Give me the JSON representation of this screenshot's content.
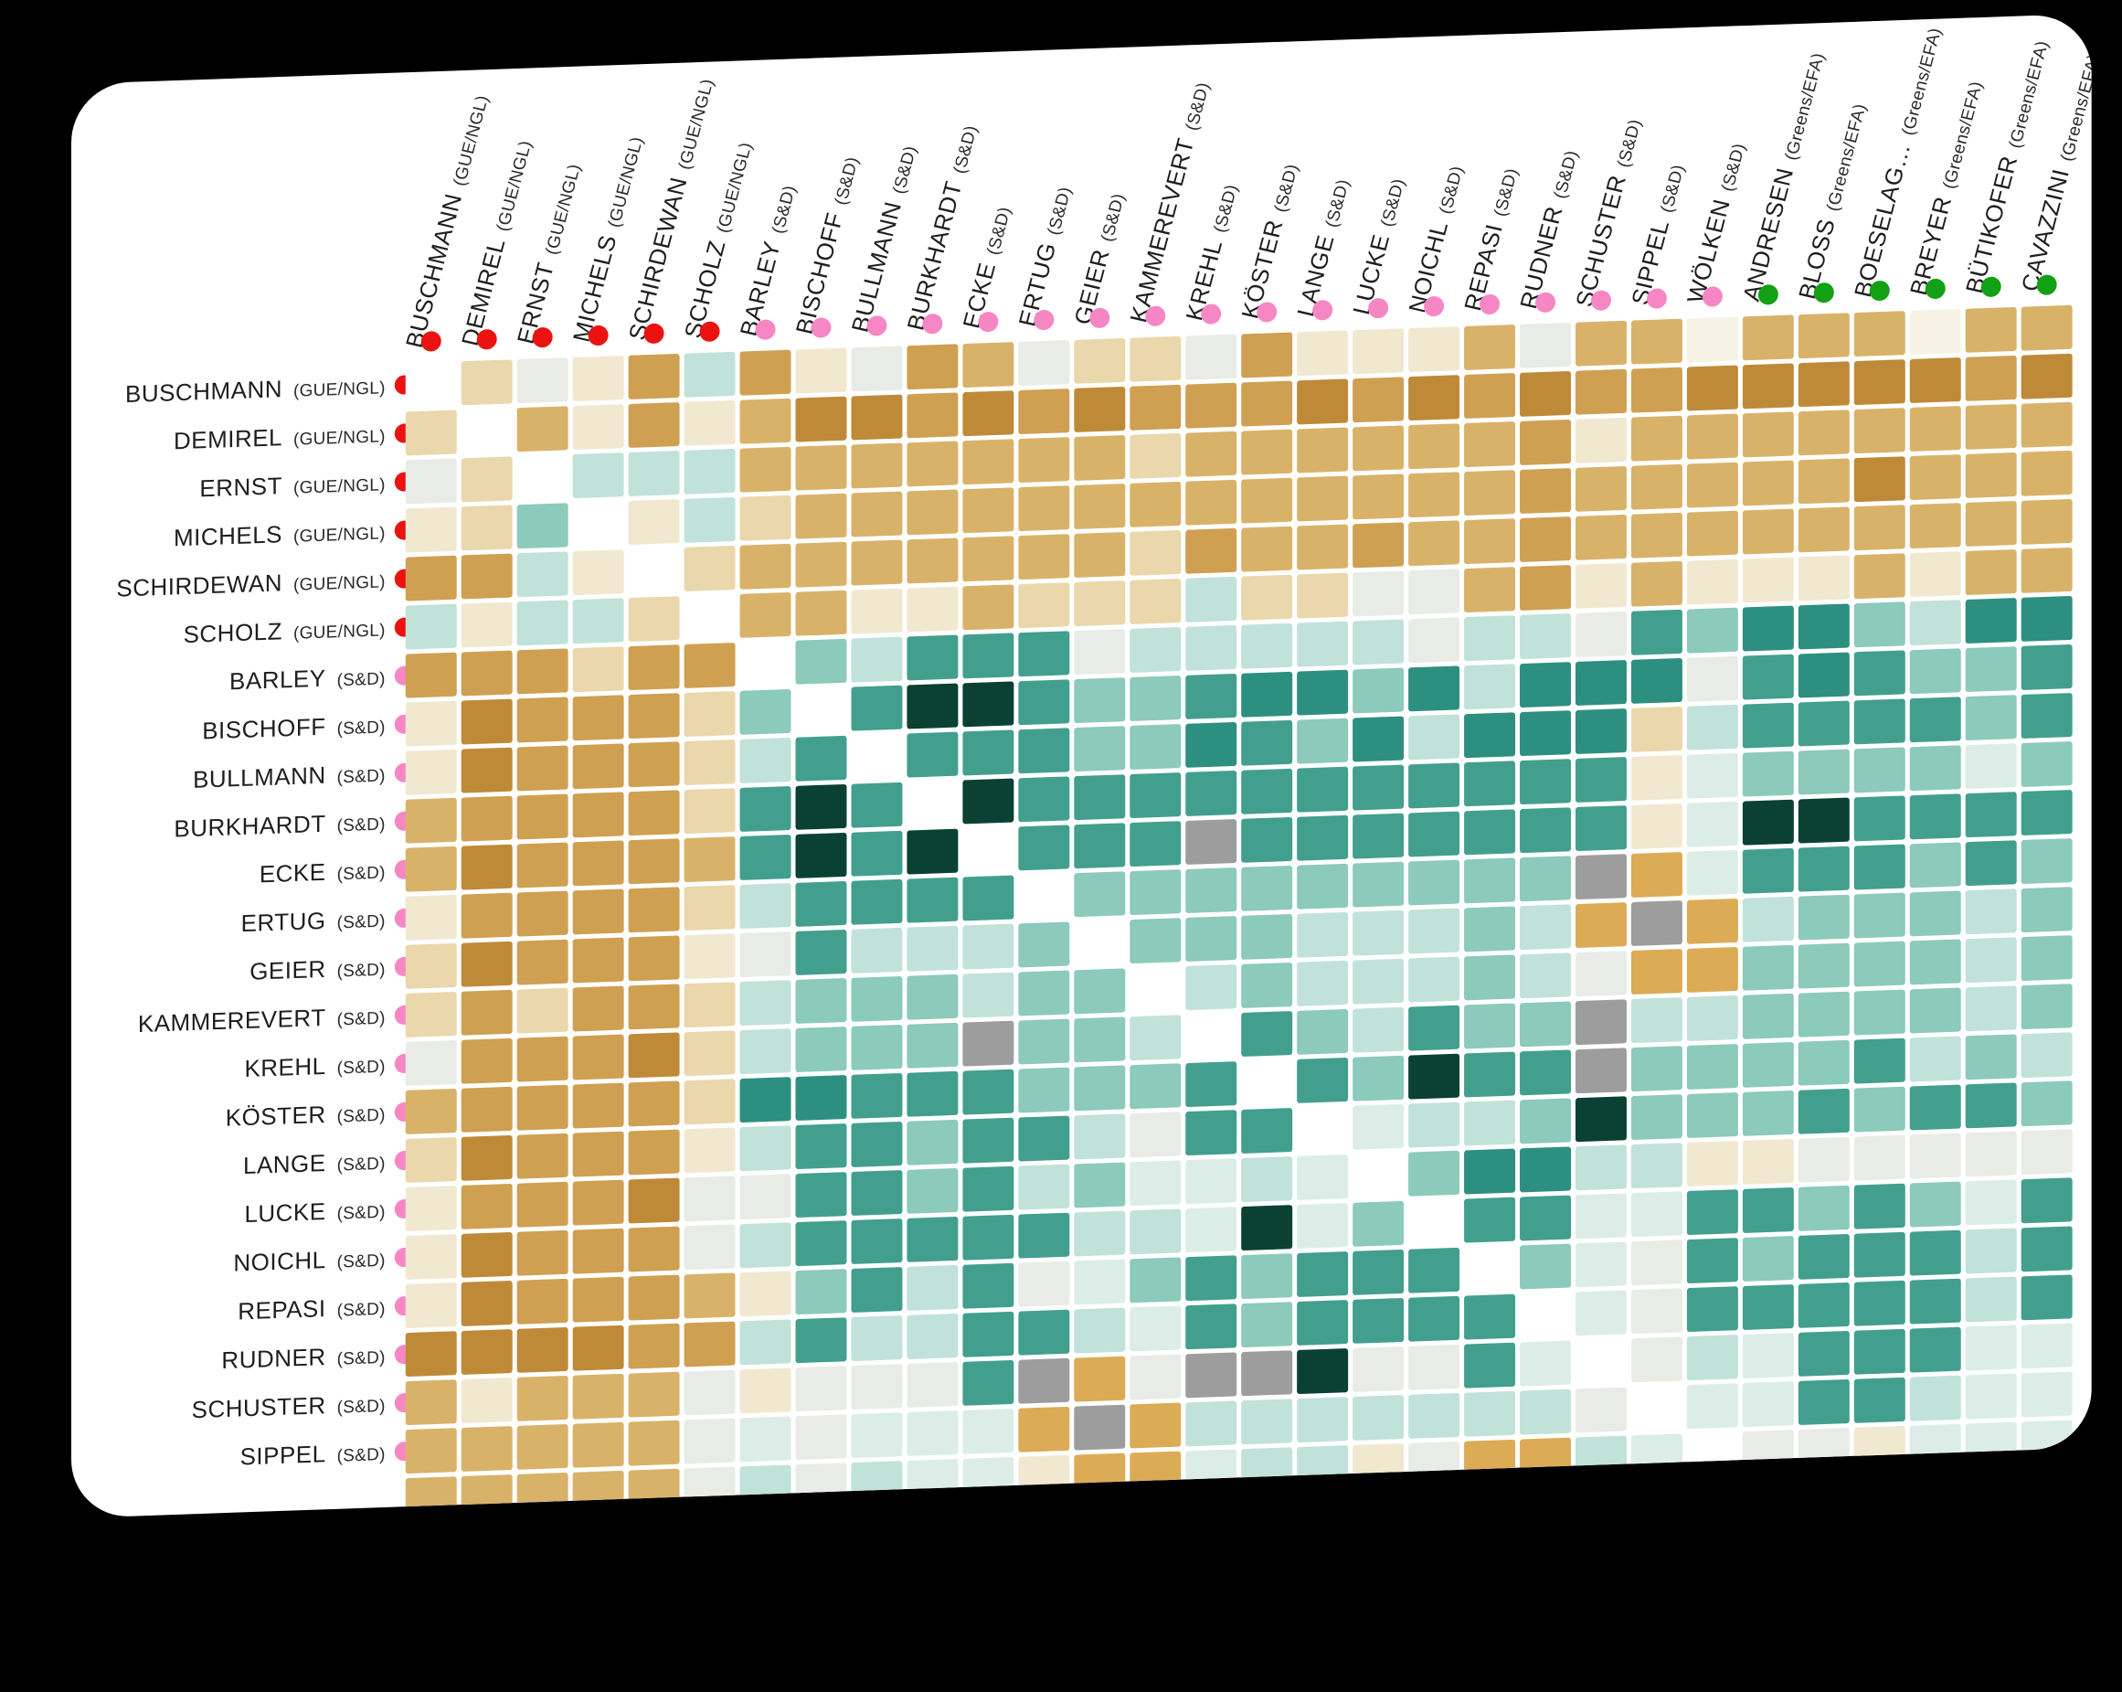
{
  "stage": {
    "background": "#000000"
  },
  "card": {
    "background": "#ffffff"
  },
  "groups": {
    "GUE/NGL": {
      "color": "#ea1311"
    },
    "S&D": {
      "color": "#f687c4"
    },
    "Greens/EFA": {
      "color": "#12a015"
    }
  },
  "chart_data": {
    "type": "heatmap",
    "title": "",
    "members": [
      {
        "name": "BUSCHMANN",
        "group": "GUE/NGL"
      },
      {
        "name": "DEMIREL",
        "group": "GUE/NGL"
      },
      {
        "name": "ERNST",
        "group": "GUE/NGL"
      },
      {
        "name": "MICHELS",
        "group": "GUE/NGL"
      },
      {
        "name": "SCHIRDEWAN",
        "group": "GUE/NGL"
      },
      {
        "name": "SCHOLZ",
        "group": "GUE/NGL"
      },
      {
        "name": "BARLEY",
        "group": "S&D"
      },
      {
        "name": "BISCHOFF",
        "group": "S&D"
      },
      {
        "name": "BULLMANN",
        "group": "S&D"
      },
      {
        "name": "BURKHARDT",
        "group": "S&D"
      },
      {
        "name": "ECKE",
        "group": "S&D"
      },
      {
        "name": "ERTUG",
        "group": "S&D"
      },
      {
        "name": "GEIER",
        "group": "S&D"
      },
      {
        "name": "KAMMEREVERT",
        "group": "S&D"
      },
      {
        "name": "KREHL",
        "group": "S&D"
      },
      {
        "name": "KÖSTER",
        "group": "S&D"
      },
      {
        "name": "LANGE",
        "group": "S&D"
      },
      {
        "name": "LUCKE",
        "group": "S&D"
      },
      {
        "name": "NOICHL",
        "group": "S&D"
      },
      {
        "name": "REPASI",
        "group": "S&D"
      },
      {
        "name": "RUDNER",
        "group": "S&D"
      },
      {
        "name": "SCHUSTER",
        "group": "S&D"
      },
      {
        "name": "SIPPEL",
        "group": "S&D"
      },
      {
        "name": "WÖLKEN",
        "group": "S&D"
      },
      {
        "name": "ANDRESEN",
        "group": "Greens/EFA"
      },
      {
        "name": "BLOSS",
        "group": "Greens/EFA"
      },
      {
        "name": "BOESELAG…",
        "group": "Greens/EFA"
      },
      {
        "name": "BREYER",
        "group": "Greens/EFA"
      },
      {
        "name": "BÜTIKOFER",
        "group": "Greens/EFA"
      },
      {
        "name": "CAVAZZINI",
        "group": "Greens/EFA"
      }
    ],
    "column_count": 30,
    "row_count": 26,
    "visible_row_label_count": 23,
    "diagonal": "white",
    "palette": {
      "W": "#ffffff",
      "K": "#0a4132",
      "T4": "#2d8f7f",
      "T3": "#429f8e",
      "T2": "#8ccabb",
      "T1": "#c0e2d9",
      "T0": "#dcede7",
      "G": "#e9ece6",
      "GY": "#9d9d9d",
      "GD": "#dcab55",
      "B4": "#bf8a38",
      "B3": "#cfa052",
      "B2": "#d9b269",
      "B1": "#ead7ab",
      "B0": "#f1e8d0",
      "C": "#f6f2e6"
    },
    "cells": [
      [
        "W",
        "B1",
        "G",
        "B0",
        "B3",
        "T1",
        "B3",
        "B0",
        "G",
        "B3",
        "B2",
        "G",
        "B1",
        "B1",
        "G",
        "B3",
        "B0",
        "B0",
        "B0",
        "B2",
        "G",
        "B2",
        "B2",
        "C",
        "B2",
        "B2",
        "B2",
        "C",
        "B2",
        "B2"
      ],
      [
        "B1",
        "W",
        "B2",
        "B0",
        "B3",
        "B0",
        "B2",
        "B4",
        "B4",
        "B3",
        "B4",
        "B3",
        "B4",
        "B3",
        "B3",
        "B3",
        "B4",
        "B3",
        "B4",
        "B3",
        "B4",
        "B3",
        "B3",
        "B4",
        "B4",
        "B4",
        "B4",
        "B4",
        "B3",
        "B4"
      ],
      [
        "G",
        "B1",
        "W",
        "T1",
        "T1",
        "T1",
        "B2",
        "B2",
        "B2",
        "B2",
        "B2",
        "B2",
        "B2",
        "B1",
        "B2",
        "B2",
        "B2",
        "B2",
        "B2",
        "B2",
        "B3",
        "B0",
        "B2",
        "B2",
        "B2",
        "B2",
        "B2",
        "B2",
        "B2",
        "B2"
      ],
      [
        "B0",
        "B1",
        "T2",
        "W",
        "B0",
        "T1",
        "B1",
        "B2",
        "B2",
        "B2",
        "B2",
        "B2",
        "B2",
        "B2",
        "B2",
        "B2",
        "B2",
        "B2",
        "B2",
        "B2",
        "B3",
        "B2",
        "B2",
        "B2",
        "B2",
        "B2",
        "B4",
        "B2",
        "B2",
        "B2"
      ],
      [
        "B3",
        "B3",
        "T1",
        "B0",
        "W",
        "B1",
        "B2",
        "B2",
        "B2",
        "B2",
        "B2",
        "B2",
        "B2",
        "B1",
        "B3",
        "B2",
        "B2",
        "B3",
        "B2",
        "B2",
        "B3",
        "B2",
        "B2",
        "B2",
        "B2",
        "B2",
        "B2",
        "B2",
        "B2",
        "B2"
      ],
      [
        "T1",
        "B0",
        "T1",
        "T1",
        "B1",
        "W",
        "B2",
        "B2",
        "B0",
        "B0",
        "B2",
        "B1",
        "B1",
        "B1",
        "T1",
        "B1",
        "B1",
        "G",
        "G",
        "B2",
        "B3",
        "B0",
        "B2",
        "B0",
        "B0",
        "B0",
        "B2",
        "B0",
        "B2",
        "B2"
      ],
      [
        "B3",
        "B3",
        "B3",
        "B1",
        "B3",
        "B3",
        "W",
        "T2",
        "T1",
        "T3",
        "T3",
        "T3",
        "G",
        "T1",
        "T1",
        "T1",
        "T1",
        "T1",
        "G",
        "T1",
        "T1",
        "G",
        "T3",
        "T2",
        "T4",
        "T4",
        "T2",
        "T1",
        "T4",
        "T4"
      ],
      [
        "B0",
        "B4",
        "B3",
        "B3",
        "B3",
        "B1",
        "T2",
        "W",
        "T3",
        "K",
        "K",
        "T3",
        "T2",
        "T2",
        "T3",
        "T4",
        "T4",
        "T2",
        "T4",
        "T1",
        "T4",
        "T4",
        "T4",
        "G",
        "T3",
        "T4",
        "T3",
        "T2",
        "T2",
        "T3"
      ],
      [
        "B0",
        "B4",
        "B3",
        "B3",
        "B3",
        "B1",
        "T1",
        "T3",
        "W",
        "T3",
        "T3",
        "T3",
        "T2",
        "T2",
        "T4",
        "T3",
        "T2",
        "T4",
        "T1",
        "T4",
        "T4",
        "T4",
        "B1",
        "T1",
        "T3",
        "T3",
        "T3",
        "T3",
        "T2",
        "T3"
      ],
      [
        "B2",
        "B3",
        "B3",
        "B3",
        "B3",
        "B1",
        "T3",
        "K",
        "T3",
        "W",
        "K",
        "T3",
        "T3",
        "T3",
        "T3",
        "T3",
        "T3",
        "T3",
        "T3",
        "T3",
        "T3",
        "T3",
        "B0",
        "T0",
        "T2",
        "T2",
        "T2",
        "T2",
        "T0",
        "T2"
      ],
      [
        "B2",
        "B4",
        "B3",
        "B3",
        "B3",
        "B2",
        "T3",
        "K",
        "T3",
        "K",
        "W",
        "T3",
        "T3",
        "T3",
        "GY",
        "T3",
        "T3",
        "T3",
        "T3",
        "T3",
        "T3",
        "T3",
        "B0",
        "T0",
        "K",
        "K",
        "T3",
        "T3",
        "T3",
        "T3"
      ],
      [
        "B0",
        "B3",
        "B3",
        "B3",
        "B3",
        "B1",
        "T1",
        "T3",
        "T3",
        "T3",
        "T3",
        "W",
        "T2",
        "T2",
        "T2",
        "T2",
        "T2",
        "T2",
        "T2",
        "T2",
        "T2",
        "GY",
        "GD",
        "T0",
        "T3",
        "T3",
        "T3",
        "T2",
        "T3",
        "T2"
      ],
      [
        "B1",
        "B4",
        "B3",
        "B3",
        "B3",
        "B0",
        "G",
        "T3",
        "T1",
        "T1",
        "T1",
        "T2",
        "W",
        "T2",
        "T2",
        "T2",
        "T1",
        "T1",
        "T1",
        "T2",
        "T1",
        "GD",
        "GY",
        "GD",
        "T1",
        "T2",
        "T2",
        "T2",
        "T1",
        "T2"
      ],
      [
        "B1",
        "B3",
        "B1",
        "B3",
        "B3",
        "B1",
        "T1",
        "T2",
        "T2",
        "T2",
        "T1",
        "T2",
        "T2",
        "W",
        "T1",
        "T2",
        "T1",
        "T1",
        "T1",
        "T2",
        "T1",
        "G",
        "GD",
        "GD",
        "T2",
        "T2",
        "T2",
        "T2",
        "T1",
        "T2"
      ],
      [
        "G",
        "B3",
        "B3",
        "B3",
        "B4",
        "B1",
        "T1",
        "T2",
        "T2",
        "T2",
        "GY",
        "T2",
        "T2",
        "T1",
        "W",
        "T3",
        "T2",
        "T1",
        "T3",
        "T2",
        "T2",
        "GY",
        "T1",
        "T1",
        "T2",
        "T2",
        "T2",
        "T2",
        "T1",
        "T2"
      ],
      [
        "B2",
        "B3",
        "B3",
        "B3",
        "B3",
        "B1",
        "T4",
        "T4",
        "T3",
        "T3",
        "T3",
        "T2",
        "T2",
        "T2",
        "T3",
        "W",
        "T3",
        "T2",
        "K",
        "T3",
        "T3",
        "GY",
        "T2",
        "T2",
        "T2",
        "T2",
        "T3",
        "T1",
        "T2",
        "T1"
      ],
      [
        "B1",
        "B4",
        "B3",
        "B3",
        "B3",
        "B0",
        "T1",
        "T3",
        "T3",
        "T2",
        "T3",
        "T3",
        "T1",
        "G",
        "T3",
        "T3",
        "W",
        "T0",
        "T1",
        "T1",
        "T2",
        "K",
        "T2",
        "T2",
        "T2",
        "T3",
        "T2",
        "T3",
        "T3",
        "T2"
      ],
      [
        "B0",
        "B3",
        "B3",
        "B3",
        "B4",
        "G",
        "G",
        "T3",
        "T3",
        "T2",
        "T3",
        "T1",
        "T2",
        "T0",
        "T0",
        "T1",
        "T0",
        "W",
        "T2",
        "T4",
        "T4",
        "T1",
        "T1",
        "B0",
        "B0",
        "G",
        "G",
        "G",
        "G",
        "G"
      ],
      [
        "B0",
        "B4",
        "B3",
        "B3",
        "B3",
        "G",
        "T1",
        "T3",
        "T3",
        "T3",
        "T3",
        "T3",
        "T1",
        "T1",
        "T0",
        "K",
        "T0",
        "T2",
        "W",
        "T3",
        "T3",
        "T0",
        "T0",
        "T3",
        "T3",
        "T2",
        "T3",
        "T2",
        "T0",
        "T3"
      ],
      [
        "B0",
        "B4",
        "B3",
        "B3",
        "B3",
        "B2",
        "B0",
        "T2",
        "T3",
        "T1",
        "T3",
        "G",
        "T0",
        "T2",
        "T3",
        "T2",
        "T3",
        "T3",
        "T3",
        "W",
        "T2",
        "T0",
        "G",
        "T3",
        "T2",
        "T3",
        "T3",
        "T3",
        "T1",
        "T3"
      ],
      [
        "B4",
        "B4",
        "B4",
        "B4",
        "B3",
        "B3",
        "T1",
        "T3",
        "T1",
        "T1",
        "T3",
        "T3",
        "T1",
        "T0",
        "T3",
        "T2",
        "T3",
        "T3",
        "T3",
        "T3",
        "W",
        "T0",
        "G",
        "T3",
        "T3",
        "T3",
        "T3",
        "T3",
        "T1",
        "T3"
      ],
      [
        "B2",
        "B0",
        "B2",
        "B2",
        "B2",
        "G",
        "B0",
        "G",
        "G",
        "G",
        "T3",
        "GY",
        "GD",
        "G",
        "GY",
        "GY",
        "K",
        "G",
        "G",
        "T3",
        "T0",
        "W",
        "G",
        "T1",
        "T0",
        "T3",
        "T3",
        "T3",
        "T0",
        "T0"
      ],
      [
        "B2",
        "B2",
        "B2",
        "B2",
        "B2",
        "G",
        "T0",
        "G",
        "T0",
        "T0",
        "T0",
        "GD",
        "GY",
        "GD",
        "T1",
        "T1",
        "T1",
        "T1",
        "T1",
        "T1",
        "T1",
        "G",
        "W",
        "T0",
        "T0",
        "T3",
        "T3",
        "T1",
        "T0",
        "T0"
      ],
      [
        "B2",
        "B2",
        "B2",
        "B2",
        "B2",
        "G",
        "T1",
        "G",
        "T1",
        "T0",
        "T0",
        "B0",
        "GD",
        "GD",
        "T0",
        "T1",
        "T1",
        "B0",
        "G",
        "GD",
        "GD",
        "T1",
        "T0",
        "W",
        "G",
        "G",
        "B0",
        "T0",
        "T0",
        "T0"
      ],
      [
        "B2",
        "B4",
        "B3",
        "B2",
        "B2",
        "B0",
        "T3",
        "T2",
        "T3",
        "T2",
        "K",
        "T2",
        "T1",
        "T2",
        "T1",
        "T2",
        "T2",
        "G",
        "T3",
        "T2",
        "T3",
        "T0",
        "T0",
        "G",
        "W",
        "T3",
        "T3",
        "T2",
        "T1",
        "T3"
      ],
      [
        "B2",
        "B4",
        "B3",
        "B2",
        "B2",
        "B0",
        "T3",
        "T3",
        "T3",
        "T2",
        "K",
        "T3",
        "T1",
        "T2",
        "T1",
        "T2",
        "T3",
        "G",
        "T2",
        "T3",
        "T3",
        "T3",
        "T3",
        "G",
        "T3",
        "W",
        "T3",
        "T3",
        "T2",
        "T3"
      ]
    ]
  }
}
